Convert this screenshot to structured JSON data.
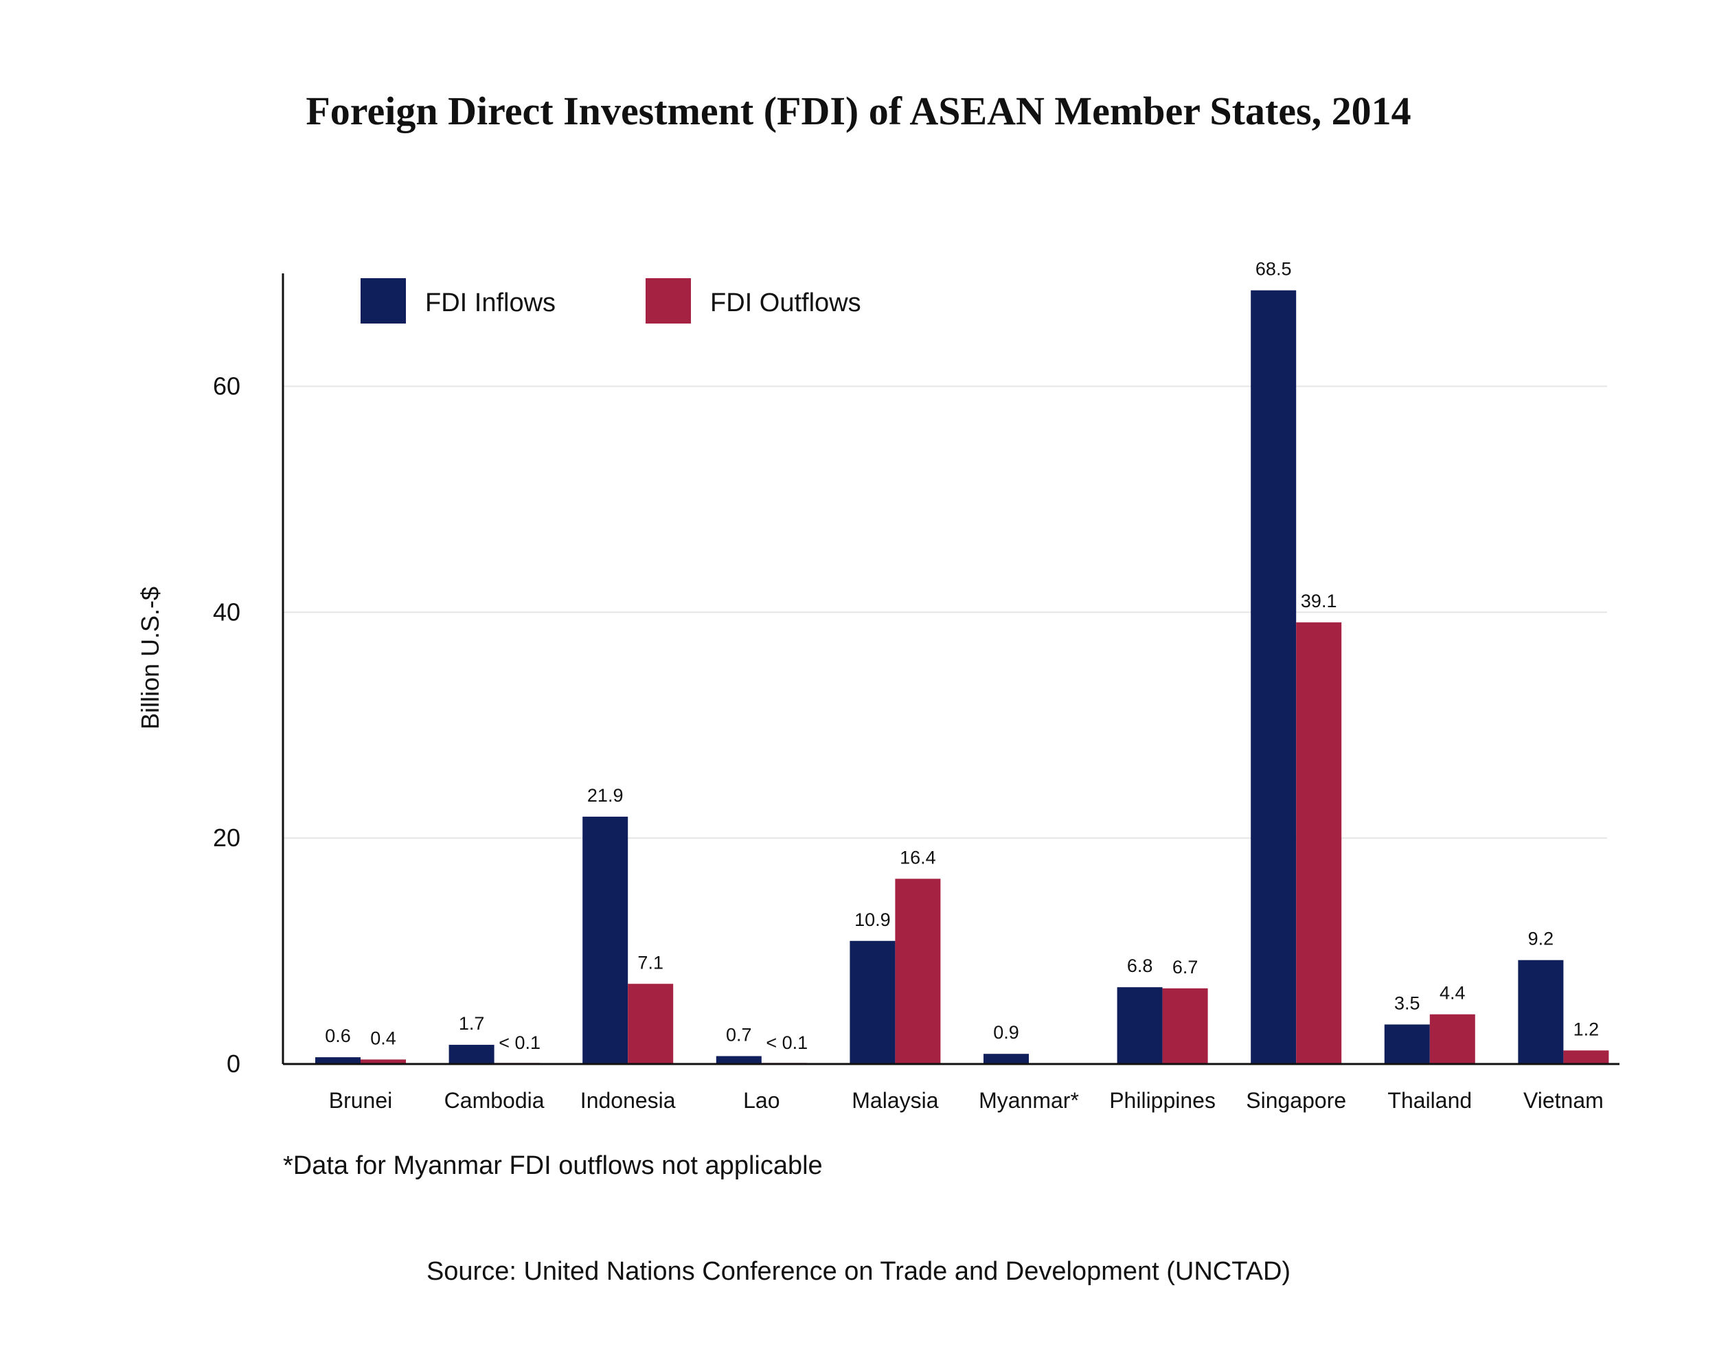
{
  "title": "Foreign Direct Investment (FDI) of ASEAN Member States, 2014",
  "footnote": "*Data for Myanmar FDI outflows not applicable",
  "source": "Source: United Nations Conference on Trade and Development (UNCTAD)",
  "chart_data": {
    "type": "bar",
    "title": "Foreign Direct Investment (FDI) of ASEAN Member States, 2014",
    "xlabel": "",
    "ylabel": "Billion U.S.-$",
    "ylim": [
      0,
      70
    ],
    "yticks": [
      0,
      20,
      40,
      60
    ],
    "grid": true,
    "legend_position": "top-left",
    "categories": [
      "Brunei",
      "Cambodia",
      "Indonesia",
      "Lao",
      "Malaysia",
      "Myanmar*",
      "Philippines",
      "Singapore",
      "Thailand",
      "Vietnam"
    ],
    "series": [
      {
        "name": "FDI Inflows",
        "color": "#0f1f5c",
        "values": [
          0.6,
          1.7,
          21.9,
          0.7,
          10.9,
          0.9,
          6.8,
          68.5,
          3.5,
          9.2
        ],
        "labels": [
          "0.6",
          "1.7",
          "21.9",
          "0.7",
          "10.9",
          "0.9",
          "6.8",
          "68.5",
          "3.5",
          "9.2"
        ]
      },
      {
        "name": "FDI Outflows",
        "color": "#a52242",
        "values": [
          0.4,
          0.1,
          7.1,
          0.1,
          16.4,
          null,
          6.7,
          39.1,
          4.4,
          1.2
        ],
        "labels": [
          "0.4",
          "< 0.1",
          "7.1",
          "< 0.1",
          "16.4",
          "",
          "6.7",
          "39.1",
          "4.4",
          "1.2"
        ]
      }
    ]
  }
}
